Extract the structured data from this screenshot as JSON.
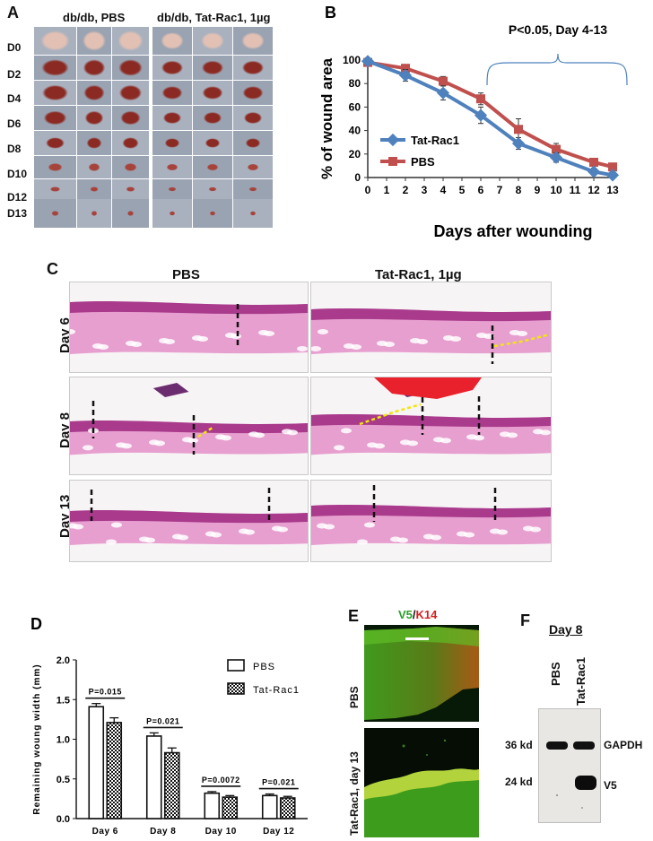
{
  "panels": {
    "a": "A",
    "b": "B",
    "c": "C",
    "d": "D",
    "e": "E",
    "f": "F"
  },
  "panel_a": {
    "group_left": "db/db,  PBS",
    "group_right": "db/db, Tat-Rac1, 1µg",
    "days": [
      "D0",
      "D2",
      "D4",
      "D6",
      "D8",
      "D10",
      "D12",
      "D13"
    ]
  },
  "panel_c": {
    "col_left": "PBS",
    "col_right": "Tat-Rac1, 1µg",
    "rows": [
      "Day 6",
      "Day 8",
      "Day 13"
    ]
  },
  "panel_e": {
    "title_green": "V5",
    "title_sep": "/",
    "title_red": "K14",
    "row_top": "PBS",
    "row_bottom": "Tat-Rac1, day 13"
  },
  "panel_f": {
    "title": "Day 8",
    "lane1": "PBS",
    "lane2": "Tat-Rac1",
    "mw1": "36 kd",
    "mw2": "24 kd",
    "band1": "GAPDH",
    "band2": "V5"
  },
  "chart_data": [
    {
      "type": "line",
      "panel": "B",
      "ylabel": "% of  wound area",
      "xlabel": "Days after wounding",
      "annotation": "P<0.05, Day 4-13",
      "xlim": [
        0,
        13
      ],
      "ylim": [
        0,
        100
      ],
      "x_ticks": [
        0,
        1,
        2,
        3,
        4,
        5,
        6,
        7,
        8,
        9,
        10,
        11,
        12,
        13
      ],
      "y_ticks": [
        0,
        20,
        40,
        60,
        80,
        100
      ],
      "x": [
        0,
        2,
        4,
        6,
        8,
        10,
        12,
        13
      ],
      "series": [
        {
          "name": "Tat-Rac1",
          "color": "#4f81bd",
          "values": [
            99,
            87,
            72,
            53,
            29,
            17,
            5,
            2
          ],
          "errors": [
            2,
            5,
            6,
            7,
            5,
            4,
            3,
            2
          ]
        },
        {
          "name": "PBS",
          "color": "#c0504d",
          "values": [
            98,
            93,
            82,
            67,
            41,
            24,
            13,
            9
          ],
          "errors": [
            2,
            3,
            4,
            5,
            9,
            5,
            3,
            2
          ]
        }
      ]
    },
    {
      "type": "bar",
      "panel": "D",
      "ylabel": "Remaining woung width (mm)",
      "categories": [
        "Day 6",
        "Day 8",
        "Day 10",
        "Day 12"
      ],
      "ylim": [
        0,
        2.0
      ],
      "y_ticks": [
        "0.0",
        "0.5",
        "1.0",
        "1.5",
        "2.0"
      ],
      "pvalues": [
        "P=0.015",
        "P=0.021",
        "P=0.0072",
        "P=0.021"
      ],
      "series": [
        {
          "name": "PBS",
          "values": [
            1.41,
            1.04,
            0.32,
            0.29
          ],
          "errors": [
            0.04,
            0.04,
            0.02,
            0.02
          ]
        },
        {
          "name": "Tat-Rac1",
          "values": [
            1.21,
            0.83,
            0.27,
            0.26
          ],
          "errors": [
            0.06,
            0.06,
            0.02,
            0.02
          ]
        }
      ]
    }
  ]
}
